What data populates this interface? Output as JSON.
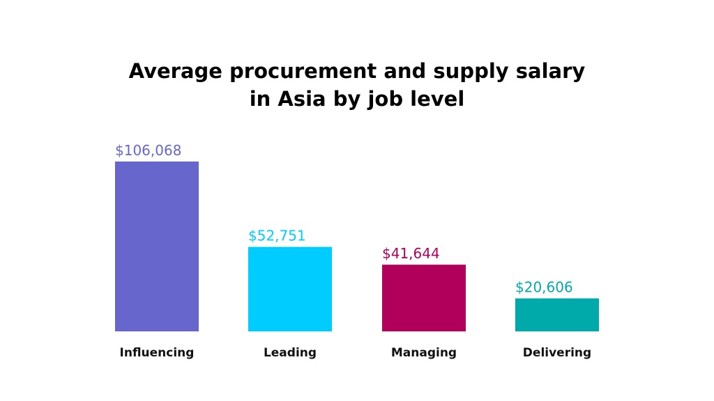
{
  "chart_data": {
    "type": "bar",
    "title_lines": [
      "Average procurement and supply salary",
      "in Asia by job level"
    ],
    "categories": [
      "Influencing",
      "Leading",
      "Managing",
      "Delivering"
    ],
    "values": [
      106068,
      52751,
      41644,
      20606
    ],
    "value_labels": [
      "$106,068",
      "$52,751",
      "$41,644",
      "$20,606"
    ],
    "colors": [
      "#6766cc",
      "#00ccff",
      "#b0005c",
      "#00aaaa"
    ],
    "ylim": [
      0,
      106068
    ],
    "grid": false,
    "legend": "none"
  }
}
